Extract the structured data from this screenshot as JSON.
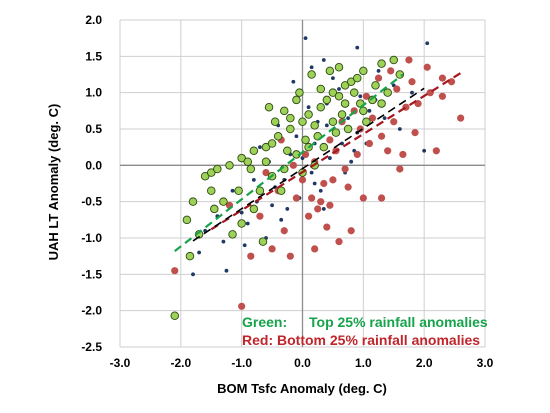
{
  "chart_data": {
    "type": "scatter",
    "title": "",
    "xlabel": "BOM Tsfc Anomaly (deg. C)",
    "ylabel": "UAH LT Anomaly (deg. C)",
    "xlim": [
      -3.0,
      3.0
    ],
    "ylim": [
      -2.5,
      2.0
    ],
    "x_ticks": [
      "-3.0",
      "-2.0",
      "-1.0",
      "0.0",
      "1.0",
      "2.0",
      "3.0"
    ],
    "y_ticks": [
      "2.0",
      "1.5",
      "1.0",
      "0.5",
      "0.0",
      "-0.5",
      "-1.0",
      "-1.5",
      "-2.0",
      "-2.5"
    ],
    "grid": true,
    "legend_position": "bottom-right",
    "annotations": [
      {
        "prefix": "Green:",
        "text": "Top 25% rainfall anomalies",
        "color": "#16a34a"
      },
      {
        "prefix": "Red:",
        "text": "Bottom 25% rainfall anomalies",
        "color": "#c0252b"
      }
    ],
    "colors": {
      "green_marker": "#9dd158",
      "green_edge": "#2d4a12",
      "red_marker": "#c0504d",
      "all_marker": "#1f3864",
      "green_trend": "#16a34a",
      "red_trend": "#a5161f",
      "all_trend": "#000000"
    },
    "trendlines": [
      {
        "series": "green",
        "x": [
          -2.1,
          1.65
        ],
        "y": [
          -1.18,
          1.25
        ]
      },
      {
        "series": "red",
        "x": [
          -1.5,
          2.6
        ],
        "y": [
          -0.88,
          1.27
        ]
      },
      {
        "series": "all",
        "x": [
          -1.8,
          2.0
        ],
        "y": [
          -1.04,
          1.06
        ]
      }
    ],
    "series": [
      {
        "key": "all",
        "points": [
          [
            0.05,
            1.75
          ],
          [
            0.9,
            1.62
          ],
          [
            2.05,
            1.68
          ],
          [
            0.35,
            1.45
          ],
          [
            -1.8,
            -1.5
          ],
          [
            -0.95,
            -1.1
          ],
          [
            -0.5,
            -0.55
          ],
          [
            0.2,
            0.3
          ],
          [
            0.4,
            0.55
          ],
          [
            -0.3,
            -0.2
          ],
          [
            1.2,
            0.9
          ],
          [
            0.75,
            0.65
          ],
          [
            -1.4,
            -0.7
          ],
          [
            -0.75,
            -0.5
          ],
          [
            0.15,
            -0.1
          ],
          [
            0.55,
            0.2
          ],
          [
            1.5,
            1.1
          ],
          [
            -0.2,
            0.15
          ],
          [
            0.9,
            0.45
          ],
          [
            -1.15,
            -0.35
          ],
          [
            0.3,
            -0.35
          ],
          [
            -0.55,
            0.05
          ],
          [
            1.8,
            1.0
          ],
          [
            0.6,
            1.05
          ],
          [
            0.1,
            0.8
          ],
          [
            -0.9,
            -0.8
          ],
          [
            -1.25,
            -1.45
          ],
          [
            0.45,
            0.1
          ],
          [
            -0.05,
            -0.45
          ],
          [
            1.05,
            0.3
          ],
          [
            0.25,
            0.6
          ],
          [
            -0.7,
            0.25
          ],
          [
            0.8,
            0.05
          ],
          [
            -0.1,
            0.4
          ],
          [
            1.35,
            0.65
          ],
          [
            -1.6,
            -0.9
          ],
          [
            0.7,
            -0.1
          ],
          [
            -0.35,
            -0.75
          ],
          [
            0.5,
            1.2
          ],
          [
            -0.8,
            -0.2
          ],
          [
            2.0,
            0.2
          ],
          [
            -0.15,
            1.15
          ],
          [
            0.65,
            0.3
          ],
          [
            -1.0,
            -0.65
          ],
          [
            0.35,
            -0.6
          ],
          [
            1.1,
            0.75
          ],
          [
            -0.4,
            0.55
          ],
          [
            0.2,
            -0.25
          ],
          [
            -1.3,
            -1.05
          ],
          [
            0.95,
            0.95
          ],
          [
            1.6,
            0.5
          ],
          [
            -0.6,
            -1.0
          ],
          [
            0.0,
            0.1
          ],
          [
            0.4,
            0.85
          ],
          [
            -0.25,
            -0.6
          ],
          [
            1.25,
            1.3
          ],
          [
            -0.45,
            -0.3
          ],
          [
            0.85,
            0.2
          ],
          [
            -1.7,
            -1.2
          ],
          [
            0.15,
            1.35
          ]
        ]
      },
      {
        "key": "red",
        "points": [
          [
            -1.0,
            -1.94
          ],
          [
            -2.1,
            -1.45
          ],
          [
            -0.5,
            -1.15
          ],
          [
            -0.3,
            -0.9
          ],
          [
            0.1,
            -0.7
          ],
          [
            0.3,
            -0.5
          ],
          [
            0.5,
            -0.2
          ],
          [
            0.7,
            -0.05
          ],
          [
            0.9,
            0.15
          ],
          [
            1.1,
            0.3
          ],
          [
            1.3,
            0.4
          ],
          [
            1.5,
            0.6
          ],
          [
            1.7,
            0.8
          ],
          [
            1.9,
            0.85
          ],
          [
            2.1,
            1.0
          ],
          [
            2.3,
            1.2
          ],
          [
            2.45,
            1.15
          ],
          [
            2.6,
            0.65
          ],
          [
            2.2,
            0.2
          ],
          [
            1.6,
            -0.05
          ],
          [
            1.3,
            -0.45
          ],
          [
            1.0,
            -0.45
          ],
          [
            0.8,
            -0.9
          ],
          [
            0.6,
            -1.05
          ],
          [
            0.4,
            -0.85
          ],
          [
            0.2,
            -1.15
          ],
          [
            -0.1,
            -0.45
          ],
          [
            -0.4,
            -0.35
          ],
          [
            -0.7,
            -0.7
          ],
          [
            -0.2,
            -1.25
          ],
          [
            0.0,
            -0.2
          ],
          [
            0.2,
            0.05
          ],
          [
            0.45,
            0.35
          ],
          [
            0.65,
            0.6
          ],
          [
            0.85,
            0.75
          ],
          [
            1.05,
            0.95
          ],
          [
            1.25,
            1.2
          ],
          [
            1.45,
            1.3
          ],
          [
            1.75,
            1.45
          ],
          [
            2.05,
            1.35
          ],
          [
            0.35,
            -0.25
          ],
          [
            0.15,
            -0.45
          ],
          [
            -0.15,
            0.0
          ],
          [
            -0.6,
            -0.1
          ],
          [
            1.65,
            0.15
          ],
          [
            1.85,
            0.45
          ],
          [
            0.55,
            0.2
          ],
          [
            0.95,
            0.5
          ],
          [
            1.15,
            0.65
          ],
          [
            0.75,
            -0.3
          ],
          [
            -0.35,
            0.35
          ],
          [
            0.05,
            0.15
          ],
          [
            1.4,
            0.2
          ],
          [
            1.8,
            1.15
          ],
          [
            2.3,
            0.95
          ],
          [
            -0.85,
            -1.25
          ],
          [
            -1.2,
            -0.55
          ],
          [
            0.25,
            -0.6
          ],
          [
            0.45,
            -0.55
          ],
          [
            1.55,
            1.05
          ]
        ]
      },
      {
        "key": "green",
        "points": [
          [
            -2.1,
            -2.07
          ],
          [
            -1.85,
            -1.25
          ],
          [
            -1.9,
            -0.75
          ],
          [
            -1.8,
            -0.5
          ],
          [
            -1.6,
            -0.15
          ],
          [
            -1.5,
            -0.1
          ],
          [
            -1.4,
            -0.05
          ],
          [
            -1.2,
            0.0
          ],
          [
            -1.0,
            0.1
          ],
          [
            -0.9,
            0.05
          ],
          [
            -0.8,
            0.2
          ],
          [
            -0.6,
            0.25
          ],
          [
            -0.5,
            0.3
          ],
          [
            -0.4,
            0.4
          ],
          [
            -0.2,
            0.5
          ],
          [
            0.0,
            0.6
          ],
          [
            0.1,
            0.7
          ],
          [
            0.2,
            0.55
          ],
          [
            0.3,
            0.8
          ],
          [
            0.4,
            0.9
          ],
          [
            0.5,
            1.0
          ],
          [
            0.6,
            0.95
          ],
          [
            0.7,
            1.1
          ],
          [
            0.8,
            1.15
          ],
          [
            0.9,
            1.2
          ],
          [
            1.0,
            1.3
          ],
          [
            1.2,
            1.1
          ],
          [
            1.3,
            1.4
          ],
          [
            1.5,
            1.45
          ],
          [
            1.6,
            1.25
          ],
          [
            0.6,
            1.35
          ],
          [
            0.45,
            1.3
          ],
          [
            0.15,
            1.25
          ],
          [
            -0.05,
            1.0
          ],
          [
            -0.1,
            0.9
          ],
          [
            -0.2,
            0.65
          ],
          [
            -0.3,
            0.75
          ],
          [
            -0.45,
            0.6
          ],
          [
            -0.6,
            0.05
          ],
          [
            -0.7,
            -0.35
          ],
          [
            -0.8,
            -0.6
          ],
          [
            -1.0,
            -0.8
          ],
          [
            -1.15,
            -0.95
          ],
          [
            -1.3,
            -0.5
          ],
          [
            -1.45,
            -0.6
          ],
          [
            -1.7,
            -0.95
          ],
          [
            -0.5,
            -0.15
          ],
          [
            -0.3,
            -0.05
          ],
          [
            -0.1,
            0.15
          ],
          [
            0.1,
            0.25
          ],
          [
            0.25,
            0.4
          ],
          [
            0.35,
            0.25
          ],
          [
            0.5,
            0.6
          ],
          [
            0.65,
            0.7
          ],
          [
            0.75,
            0.5
          ],
          [
            0.95,
            0.85
          ],
          [
            1.05,
            0.6
          ],
          [
            1.15,
            0.9
          ],
          [
            1.3,
            0.85
          ],
          [
            1.4,
            1.0
          ],
          [
            0.05,
            0.35
          ],
          [
            -0.25,
            0.2
          ],
          [
            -0.85,
            -0.05
          ],
          [
            -1.05,
            -0.35
          ],
          [
            -0.55,
            0.8
          ],
          [
            0.0,
            -0.1
          ],
          [
            0.2,
            0.0
          ],
          [
            -0.35,
            -0.35
          ],
          [
            0.55,
            0.45
          ],
          [
            0.85,
            1.0
          ],
          [
            -0.65,
            -1.05
          ],
          [
            -1.5,
            -0.35
          ],
          [
            0.3,
            1.05
          ],
          [
            0.7,
            0.85
          ],
          [
            1.0,
            0.75
          ]
        ]
      }
    ]
  }
}
